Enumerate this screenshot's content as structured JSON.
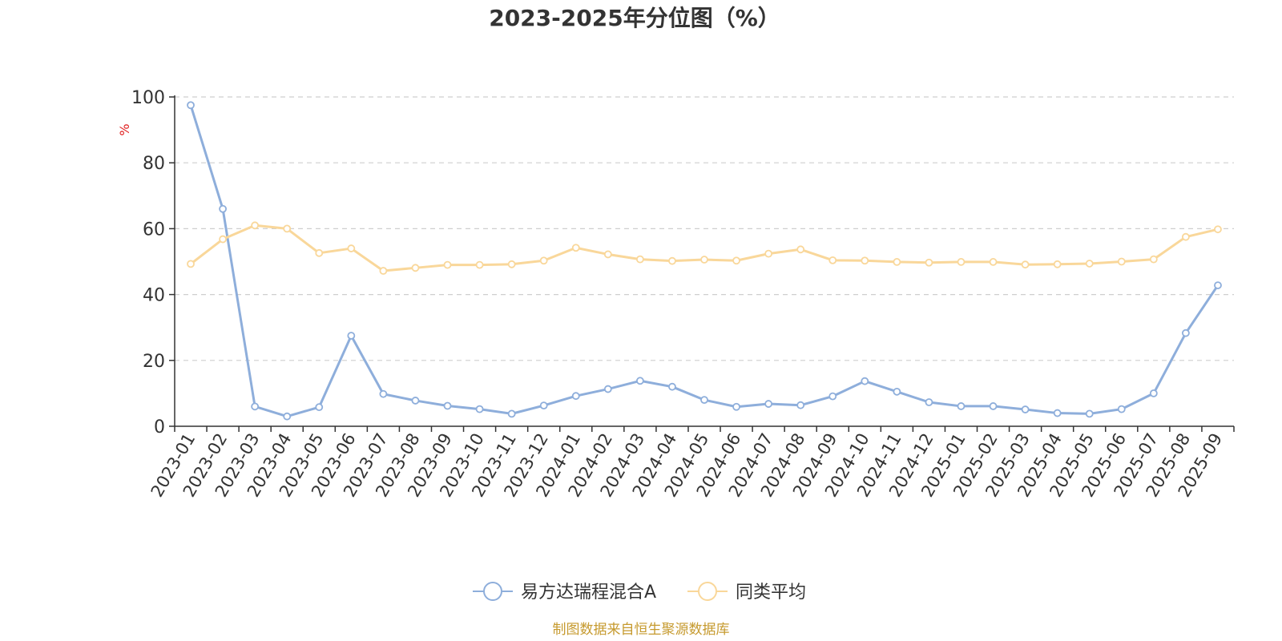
{
  "chart_data": {
    "type": "line",
    "title": "2023-2025年分位图（%）",
    "ylabel": "%",
    "ylim": [
      0,
      100
    ],
    "yticks": [
      0,
      20,
      40,
      60,
      80,
      100
    ],
    "grid": true,
    "legend_position": "bottom-center",
    "categories": [
      "2023-01",
      "2023-02",
      "2023-03",
      "2023-04",
      "2023-05",
      "2023-06",
      "2023-07",
      "2023-08",
      "2023-09",
      "2023-10",
      "2023-11",
      "2023-12",
      "2024-01",
      "2024-02",
      "2024-03",
      "2024-04",
      "2024-05",
      "2024-06",
      "2024-07",
      "2024-08",
      "2024-09",
      "2024-10",
      "2024-11",
      "2024-12",
      "2025-01",
      "2025-02",
      "2025-03",
      "2025-04",
      "2025-05",
      "2025-06",
      "2025-07",
      "2025-08",
      "2025-09"
    ],
    "series": [
      {
        "name": "易方达瑞程混合A",
        "color": "#8eaedb",
        "values": [
          97.5,
          66,
          6,
          3,
          5.8,
          27.5,
          9.8,
          7.8,
          6.2,
          5.2,
          3.8,
          6.3,
          9.2,
          11.3,
          13.8,
          12,
          8,
          5.9,
          6.8,
          6.4,
          9.1,
          13.7,
          10.5,
          7.3,
          6.1,
          6.1,
          5.1,
          4,
          3.8,
          5.2,
          10,
          28.3,
          42.8
        ]
      },
      {
        "name": "同类平均",
        "color": "#f9d79a",
        "values": [
          49.3,
          56.8,
          61,
          60,
          52.6,
          54,
          47.2,
          48.1,
          49,
          49,
          49.2,
          50.3,
          54.2,
          52.2,
          50.7,
          50.2,
          50.6,
          50.3,
          52.4,
          53.7,
          50.4,
          50.3,
          49.9,
          49.7,
          49.9,
          49.9,
          49.1,
          49.2,
          49.4,
          50,
          50.7,
          57.5,
          59.8
        ]
      }
    ]
  },
  "source": "制图数据来自恒生聚源数据库"
}
